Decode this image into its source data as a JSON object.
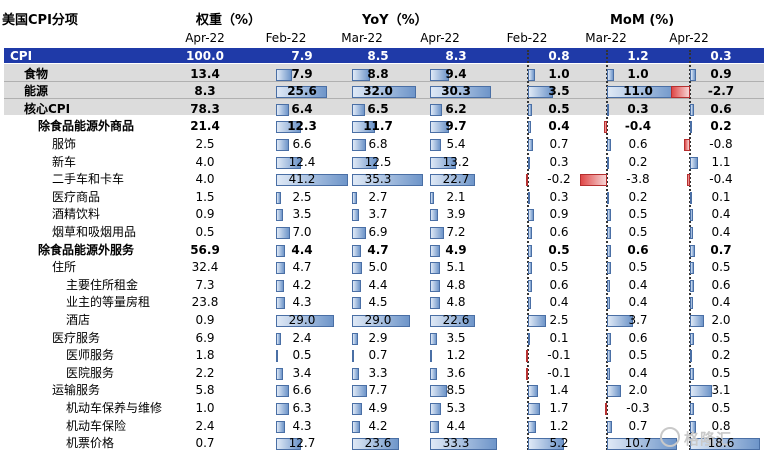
{
  "title": "美国CPI分项",
  "headers": {
    "weight": "权重（%）",
    "yoy": "YoY（%）",
    "mom": "MoM (%)",
    "periods": [
      "Apr-22",
      "Feb-22",
      "Mar-22",
      "Apr-22",
      "Feb-22",
      "Mar-22",
      "Apr-22"
    ]
  },
  "rows": [
    {
      "label": "CPI",
      "w": "100.0",
      "y1": "7.9",
      "y2": "8.5",
      "y3": "8.3",
      "m1": "0.8",
      "m2": "1.2",
      "m3": "0.3"
    },
    {
      "label": "食物",
      "w": "13.4",
      "y1": "7.9",
      "y2": "8.8",
      "y3": "9.4",
      "m1": "1.0",
      "m2": "1.0",
      "m3": "0.9"
    },
    {
      "label": "能源",
      "w": "8.3",
      "y1": "25.6",
      "y2": "32.0",
      "y3": "30.3",
      "m1": "3.5",
      "m2": "11.0",
      "m3": "-2.7"
    },
    {
      "label": "核心CPI",
      "w": "78.3",
      "y1": "6.4",
      "y2": "6.5",
      "y3": "6.2",
      "m1": "0.5",
      "m2": "0.3",
      "m3": "0.6"
    },
    {
      "label": "除食品能源外商品",
      "w": "21.4",
      "y1": "12.3",
      "y2": "11.7",
      "y3": "9.7",
      "m1": "0.4",
      "m2": "-0.4",
      "m3": "0.2"
    },
    {
      "label": "服饰",
      "w": "2.5",
      "y1": "6.6",
      "y2": "6.8",
      "y3": "5.4",
      "m1": "0.7",
      "m2": "0.6",
      "m3": "-0.8"
    },
    {
      "label": "新车",
      "w": "4.0",
      "y1": "12.4",
      "y2": "12.5",
      "y3": "13.2",
      "m1": "0.3",
      "m2": "0.2",
      "m3": "1.1"
    },
    {
      "label": "二手车和卡车",
      "w": "4.0",
      "y1": "41.2",
      "y2": "35.3",
      "y3": "22.7",
      "m1": "-0.2",
      "m2": "-3.8",
      "m3": "-0.4"
    },
    {
      "label": "医疗商品",
      "w": "1.5",
      "y1": "2.5",
      "y2": "2.7",
      "y3": "2.1",
      "m1": "0.3",
      "m2": "0.2",
      "m3": "0.1"
    },
    {
      "label": "酒精饮料",
      "w": "0.9",
      "y1": "3.5",
      "y2": "3.7",
      "y3": "3.9",
      "m1": "0.9",
      "m2": "0.5",
      "m3": "0.4"
    },
    {
      "label": "烟草和吸烟用品",
      "w": "0.5",
      "y1": "7.0",
      "y2": "6.9",
      "y3": "7.2",
      "m1": "0.6",
      "m2": "0.5",
      "m3": "0.4"
    },
    {
      "label": "除食品能源外服务",
      "w": "56.9",
      "y1": "4.4",
      "y2": "4.7",
      "y3": "4.9",
      "m1": "0.5",
      "m2": "0.6",
      "m3": "0.7"
    },
    {
      "label": "住所",
      "w": "32.4",
      "y1": "4.7",
      "y2": "5.0",
      "y3": "5.1",
      "m1": "0.5",
      "m2": "0.5",
      "m3": "0.5"
    },
    {
      "label": "主要住所租金",
      "w": "7.3",
      "y1": "4.2",
      "y2": "4.4",
      "y3": "4.8",
      "m1": "0.6",
      "m2": "0.4",
      "m3": "0.6"
    },
    {
      "label": "业主的等量房租",
      "w": "23.8",
      "y1": "4.3",
      "y2": "4.5",
      "y3": "4.8",
      "m1": "0.4",
      "m2": "0.4",
      "m3": "0.4"
    },
    {
      "label": "酒店",
      "w": "0.9",
      "y1": "29.0",
      "y2": "29.0",
      "y3": "22.6",
      "m1": "2.5",
      "m2": "3.7",
      "m3": "2.0"
    },
    {
      "label": "医疗服务",
      "w": "6.9",
      "y1": "2.4",
      "y2": "2.9",
      "y3": "3.5",
      "m1": "0.1",
      "m2": "0.6",
      "m3": "0.5"
    },
    {
      "label": "医师服务",
      "w": "1.8",
      "y1": "0.5",
      "y2": "0.7",
      "y3": "1.2",
      "m1": "-0.1",
      "m2": "0.5",
      "m3": "0.2"
    },
    {
      "label": "医院服务",
      "w": "2.2",
      "y1": "3.4",
      "y2": "3.3",
      "y3": "3.6",
      "m1": "-0.1",
      "m2": "0.4",
      "m3": "0.5"
    },
    {
      "label": "运输服务",
      "w": "5.8",
      "y1": "6.6",
      "y2": "7.7",
      "y3": "8.5",
      "m1": "1.4",
      "m2": "2.0",
      "m3": "3.1"
    },
    {
      "label": "机动车保养与维修",
      "w": "1.0",
      "y1": "6.3",
      "y2": "4.9",
      "y3": "5.3",
      "m1": "1.7",
      "m2": "-0.3",
      "m3": "0.5"
    },
    {
      "label": "机动车保险",
      "w": "2.4",
      "y1": "4.3",
      "y2": "4.2",
      "y3": "4.4",
      "m1": "1.2",
      "m2": "0.7",
      "m3": "0.8"
    },
    {
      "label": "机票价格",
      "w": "0.7",
      "y1": "12.7",
      "y2": "23.6",
      "y3": "33.3",
      "m1": "5.2",
      "m2": "10.7",
      "m3": "18.6"
    }
  ],
  "watermark": "格隆汇",
  "colors": {
    "cpi_band": "#1f3aa8",
    "grey_band": "#dcdcdc",
    "bar_pos": "#6e95c9",
    "bar_neg": "#e04848"
  }
}
